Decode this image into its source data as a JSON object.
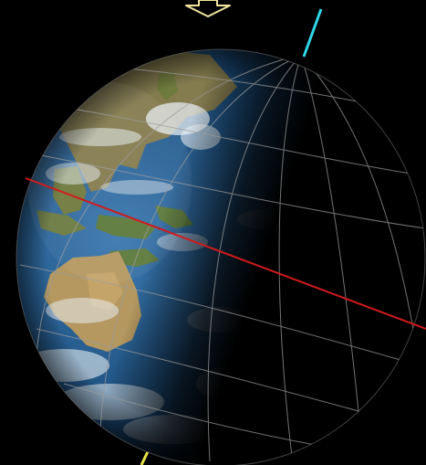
{
  "scene": {
    "subject": "earth-globe",
    "background_color": "#000000",
    "sun_direction_indicator": "hollow-arrow-down",
    "colors": {
      "ocean": "#1d4f7e",
      "land": "#9c8a55",
      "land_green": "#5d7a3a",
      "cloud": "#e8eef2",
      "night_side": "#000000",
      "graticule": "#9a9a9a",
      "equator": "#d11a1a",
      "north_axis": "#2fd6e6",
      "south_axis": "#e8e14a",
      "sun_arrow": "#f0e6a0"
    }
  }
}
